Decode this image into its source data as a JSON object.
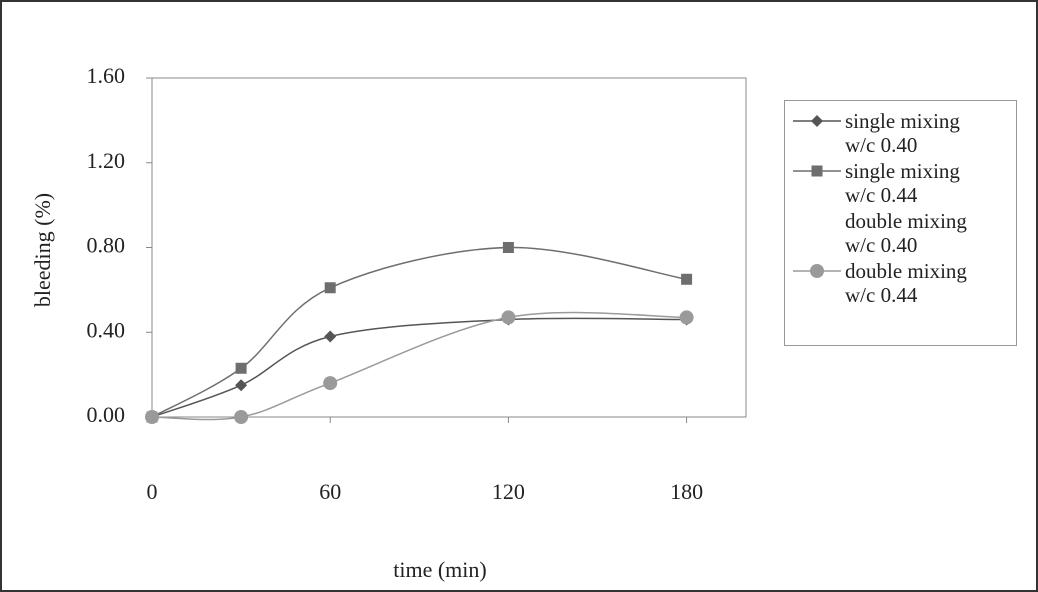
{
  "chart_data": {
    "type": "line",
    "x_label": "time (min)",
    "y_label": "bleeding (%)",
    "x": [
      0,
      30,
      60,
      120,
      180
    ],
    "series": [
      {
        "name": "single mixing w/c 0.40",
        "color": "#555555",
        "marker": "diamond",
        "values": [
          0,
          0.15,
          0.38,
          0.46,
          0.46
        ]
      },
      {
        "name": "single mixing w/c 0.44",
        "color": "#6e6e6e",
        "marker": "square",
        "values": [
          0,
          0.23,
          0.61,
          0.8,
          0.65
        ]
      },
      {
        "name": "double mixing w/c 0.40",
        "color": "#ffffff",
        "marker": "none",
        "values": [
          null,
          null,
          null,
          null,
          null
        ]
      },
      {
        "name": "double mixing w/c 0.44",
        "color": "#9a9a9a",
        "marker": "circle",
        "values": [
          0,
          0,
          0.16,
          0.47,
          0.47
        ]
      }
    ],
    "xlim": [
      0,
      200
    ],
    "xticks": [
      0,
      60,
      120,
      180
    ],
    "ylim": [
      0,
      1.6
    ],
    "yticks": [
      {
        "value": 0,
        "label": "0.00"
      },
      {
        "value": 0.4,
        "label": "0.40"
      },
      {
        "value": 0.8,
        "label": "0.80"
      },
      {
        "value": 1.2,
        "label": "1.20"
      },
      {
        "value": 1.6,
        "label": "1.60"
      }
    ]
  }
}
